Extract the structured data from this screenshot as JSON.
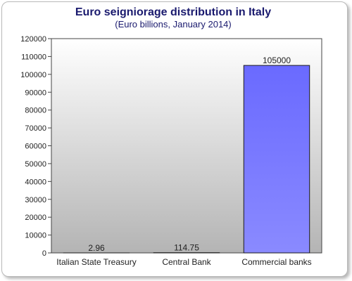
{
  "chart_data": {
    "type": "bar",
    "title": "Euro seigniorage distribution in Italy",
    "subtitle": "(Euro billions, January 2014)",
    "categories": [
      "Italian State Treasury",
      "Central Bank",
      "Commercial banks"
    ],
    "values": [
      2.96,
      114.75,
      105000
    ],
    "data_labels": [
      "2.96",
      "114.75",
      "105000"
    ],
    "ylim": [
      0,
      120000
    ],
    "yticks": [
      "0",
      "10000",
      "20000",
      "30000",
      "40000",
      "50000",
      "60000",
      "70000",
      "80000",
      "90000",
      "100000",
      "110000",
      "120000"
    ],
    "grid": false,
    "legend": "none",
    "colors": {
      "plot_bg_top": "#ffffff",
      "plot_bg_bottom": "#b4b4b4",
      "bar_top": "#6a6aff",
      "bar_bottom": "#8a8aff",
      "bar_border": "#1a1a1a",
      "title": "#1a1a6e"
    }
  }
}
